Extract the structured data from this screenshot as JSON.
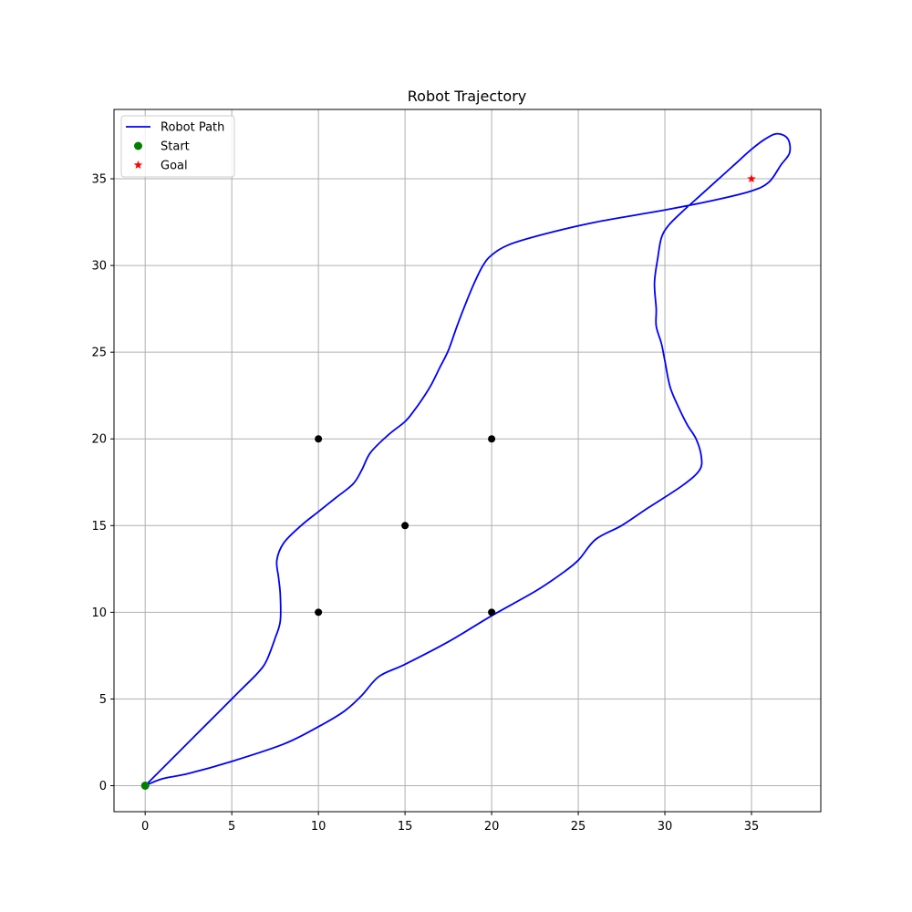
{
  "chart_data": {
    "type": "line",
    "title": "Robot Trajectory",
    "xlabel": "",
    "ylabel": "",
    "xlim": [
      -1.8,
      39.0
    ],
    "ylim": [
      -1.5,
      39.0
    ],
    "xticks": [
      0,
      5,
      10,
      15,
      20,
      25,
      30,
      35
    ],
    "yticks": [
      0,
      5,
      10,
      15,
      20,
      25,
      30,
      35
    ],
    "grid": true,
    "legend_position": "upper-left",
    "series": [
      {
        "name": "Robot Path",
        "kind": "line",
        "color": "#0000ff",
        "x": [
          0,
          1.5,
          3.5,
          5.5,
          6.5,
          7.0,
          7.5,
          7.8,
          7.8,
          7.7,
          7.6,
          8.0,
          9.0,
          10.0,
          11.0,
          12.0,
          12.5,
          13.0,
          14.0,
          15.0,
          15.5,
          16.0,
          16.5,
          17.0,
          17.5,
          18.0,
          18.5,
          19.0,
          19.5,
          20.0,
          21.0,
          23.0,
          26.0,
          30.0,
          33.0,
          35.0,
          36.0,
          36.7,
          37.2,
          37.1,
          36.5,
          35.8,
          35.0,
          34.0,
          33.0,
          32.0,
          31.0,
          30.2,
          29.8,
          29.6,
          29.4,
          29.5,
          29.5,
          29.8,
          30.0,
          30.3,
          30.8,
          31.3,
          31.8,
          32.1,
          32.0,
          31.0,
          29.0,
          27.5,
          26.0,
          25.0,
          24.0,
          22.5,
          20.0,
          17.5,
          15.0,
          13.5,
          12.5,
          11.5,
          10.0,
          8.0,
          5.0,
          2.5,
          1.0,
          0
        ],
        "y": [
          0,
          1.5,
          3.5,
          5.5,
          6.5,
          7.2,
          8.5,
          9.5,
          11.0,
          12.0,
          13.0,
          14.0,
          15.0,
          15.8,
          16.6,
          17.4,
          18.2,
          19.2,
          20.2,
          21.0,
          21.6,
          22.3,
          23.1,
          24.1,
          25.1,
          26.5,
          27.8,
          29.0,
          30.0,
          30.6,
          31.2,
          31.8,
          32.5,
          33.2,
          33.8,
          34.3,
          34.8,
          35.8,
          36.5,
          37.3,
          37.6,
          37.3,
          36.7,
          35.8,
          34.9,
          34.0,
          33.1,
          32.3,
          31.6,
          30.5,
          29.0,
          27.5,
          26.5,
          25.5,
          24.5,
          23.0,
          21.8,
          20.8,
          20.0,
          19.0,
          18.2,
          17.3,
          16.0,
          15.0,
          14.2,
          13.0,
          12.2,
          11.2,
          9.8,
          8.3,
          7.0,
          6.3,
          5.2,
          4.3,
          3.4,
          2.4,
          1.4,
          0.7,
          0.4,
          0
        ]
      },
      {
        "name": "Start",
        "kind": "scatter",
        "marker": "circle",
        "color": "#008000",
        "x": [
          0
        ],
        "y": [
          0
        ]
      },
      {
        "name": "Goal",
        "kind": "scatter",
        "marker": "star",
        "color": "#ff0000",
        "x": [
          35
        ],
        "y": [
          35
        ]
      },
      {
        "name": "",
        "kind": "scatter",
        "marker": "circle",
        "color": "#000000",
        "x": [
          10,
          10,
          15,
          20,
          20
        ],
        "y": [
          10,
          20,
          15,
          10,
          20
        ]
      }
    ],
    "legend": [
      {
        "label": "Robot Path",
        "symbol": "line",
        "color": "#0000ff"
      },
      {
        "label": "Start",
        "symbol": "circle",
        "color": "#008000"
      },
      {
        "label": "Goal",
        "symbol": "star",
        "color": "#ff0000"
      }
    ]
  }
}
